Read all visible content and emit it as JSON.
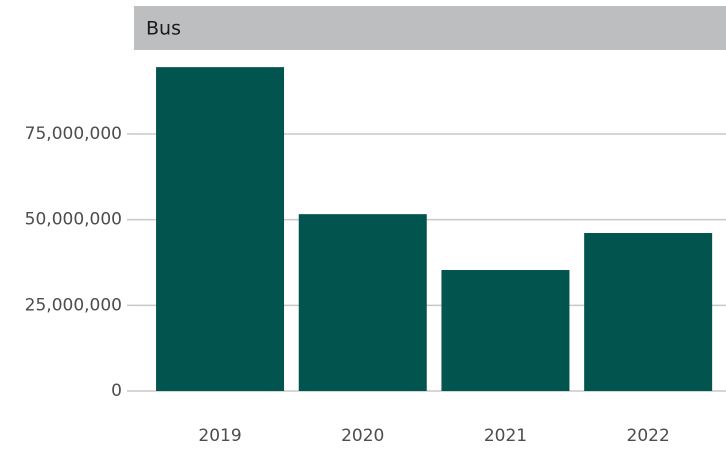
{
  "chart_data": {
    "type": "bar",
    "title": "Bus",
    "categories": [
      "2019",
      "2020",
      "2021",
      "2022"
    ],
    "values": [
      94500000,
      51600000,
      35300000,
      46100000
    ],
    "color": "#02544f",
    "ylim": [
      0,
      99500000
    ],
    "yticks": [
      0,
      {
        "value": 25000000,
        "label": "25,000,000"
      },
      {
        "value": 50000000,
        "label": "50,000,000"
      },
      {
        "value": 75000000,
        "label": "75,000,000"
      }
    ],
    "grid": true
  }
}
